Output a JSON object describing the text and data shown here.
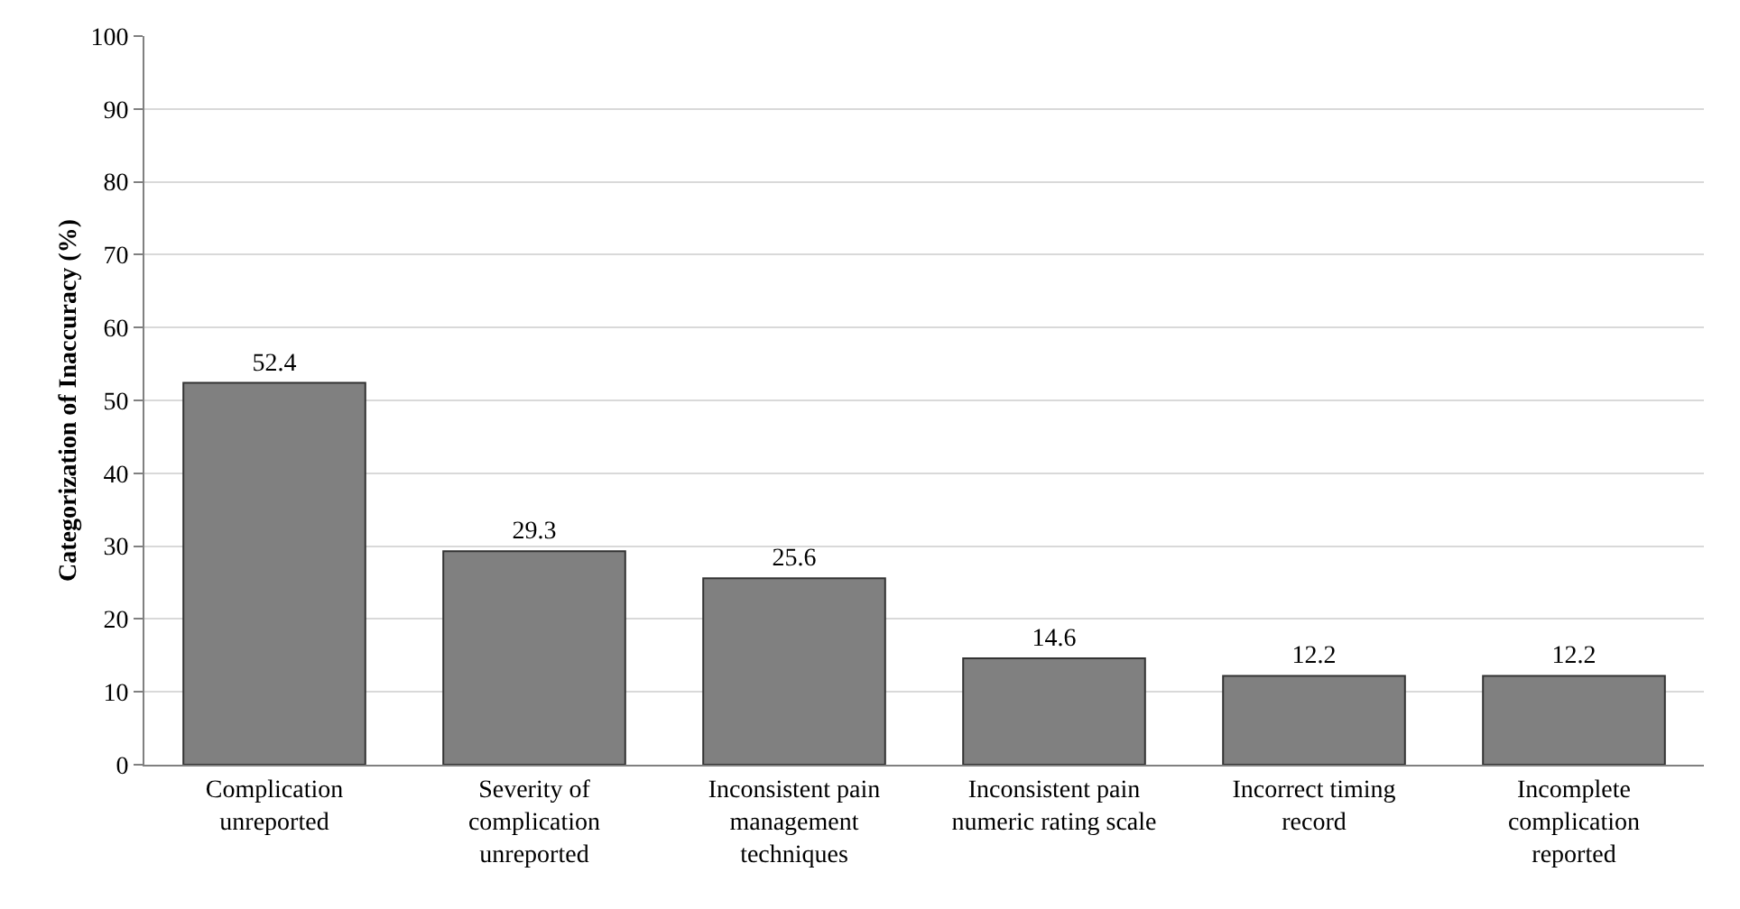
{
  "chart_data": {
    "type": "bar",
    "ylabel": "Categorization of Inaccuracy (%)",
    "categories": [
      "Complication\nunreported",
      "Severity of\ncomplication\nunreported",
      "Inconsistent pain\nmanagement\ntechniques",
      "Inconsistent pain\nnumeric rating scale",
      "Incorrect timing\nrecord",
      "Incomplete\ncomplication\nreported"
    ],
    "values": [
      52.4,
      29.3,
      25.6,
      14.6,
      12.2,
      12.2
    ],
    "color": "#808080",
    "ylim": [
      0,
      100
    ],
    "yticks": [
      0,
      10,
      20,
      30,
      40,
      50,
      60,
      70,
      80,
      90,
      100
    ],
    "grid": "y",
    "data_labels": true
  }
}
